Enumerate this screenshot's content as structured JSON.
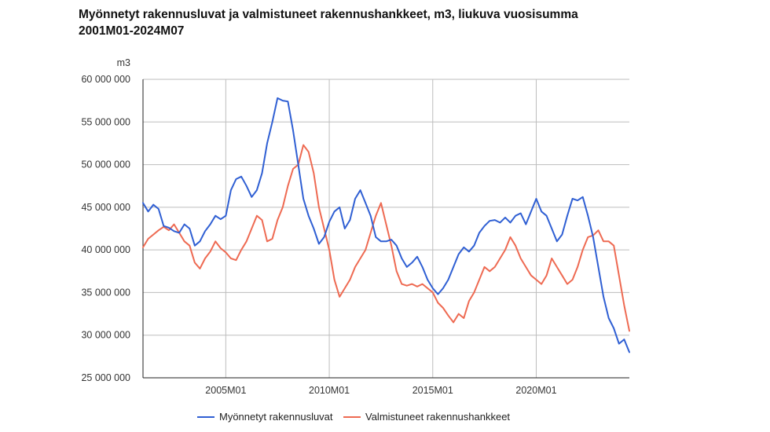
{
  "title_line1": "Myönnetyt rakennusluvat ja valmistuneet rakennushankkeet, m3, liukuva vuosisumma",
  "title_line2": "2001M01-2024M07",
  "colors": {
    "series_blue": "#2f5fd3",
    "series_red": "#ee6a52",
    "grid": "#bdbdbd",
    "axis_text": "#333333"
  },
  "chart_data": {
    "type": "line",
    "title": "Myönnetyt rakennusluvat ja valmistuneet rakennushankkeet, m3, liukuva vuosisumma",
    "subtitle": "2001M01-2024M07",
    "unit_label": "m3",
    "x_start": "2001M01",
    "x_end": "2024M07",
    "x_ticks": [
      "2005M01",
      "2010M01",
      "2015M01",
      "2020M01"
    ],
    "y_ticks": [
      "25 000 000",
      "30 000 000",
      "35 000 000",
      "40 000 000",
      "45 000 000",
      "50 000 000",
      "55 000 000",
      "60 000 000"
    ],
    "ylim": [
      25000000,
      60000000
    ],
    "grid": true,
    "legend_position": "bottom",
    "series": [
      {
        "name": "Myönnetyt rakennusluvat",
        "color": "#2f5fd3",
        "points": [
          [
            "2001M01",
            45500000
          ],
          [
            "2001M04",
            44500000
          ],
          [
            "2001M07",
            45300000
          ],
          [
            "2001M10",
            44800000
          ],
          [
            "2002M01",
            42800000
          ],
          [
            "2002M04",
            42600000
          ],
          [
            "2002M07",
            42200000
          ],
          [
            "2002M10",
            42000000
          ],
          [
            "2003M01",
            43000000
          ],
          [
            "2003M04",
            42500000
          ],
          [
            "2003M07",
            40500000
          ],
          [
            "2003M10",
            41000000
          ],
          [
            "2004M01",
            42200000
          ],
          [
            "2004M04",
            43000000
          ],
          [
            "2004M07",
            44000000
          ],
          [
            "2004M10",
            43600000
          ],
          [
            "2005M01",
            44000000
          ],
          [
            "2005M04",
            47000000
          ],
          [
            "2005M07",
            48300000
          ],
          [
            "2005M10",
            48600000
          ],
          [
            "2006M01",
            47500000
          ],
          [
            "2006M04",
            46200000
          ],
          [
            "2006M07",
            47000000
          ],
          [
            "2006M10",
            49000000
          ],
          [
            "2007M01",
            52500000
          ],
          [
            "2007M04",
            55000000
          ],
          [
            "2007M07",
            57800000
          ],
          [
            "2007M10",
            57500000
          ],
          [
            "2008M01",
            57400000
          ],
          [
            "2008M04",
            54000000
          ],
          [
            "2008M07",
            50000000
          ],
          [
            "2008M10",
            46000000
          ],
          [
            "2009M01",
            44000000
          ],
          [
            "2009M04",
            42500000
          ],
          [
            "2009M07",
            40700000
          ],
          [
            "2009M10",
            41500000
          ],
          [
            "2010M01",
            43300000
          ],
          [
            "2010M04",
            44500000
          ],
          [
            "2010M07",
            45000000
          ],
          [
            "2010M10",
            42500000
          ],
          [
            "2011M01",
            43500000
          ],
          [
            "2011M04",
            46000000
          ],
          [
            "2011M07",
            47000000
          ],
          [
            "2011M10",
            45500000
          ],
          [
            "2012M01",
            44000000
          ],
          [
            "2012M04",
            41500000
          ],
          [
            "2012M07",
            41000000
          ],
          [
            "2012M10",
            41000000
          ],
          [
            "2013M01",
            41200000
          ],
          [
            "2013M04",
            40500000
          ],
          [
            "2013M07",
            39000000
          ],
          [
            "2013M10",
            38000000
          ],
          [
            "2014M01",
            38500000
          ],
          [
            "2014M04",
            39200000
          ],
          [
            "2014M07",
            38000000
          ],
          [
            "2014M10",
            36500000
          ],
          [
            "2015M01",
            35500000
          ],
          [
            "2015M04",
            34800000
          ],
          [
            "2015M07",
            35500000
          ],
          [
            "2015M10",
            36500000
          ],
          [
            "2016M01",
            38000000
          ],
          [
            "2016M04",
            39500000
          ],
          [
            "2016M07",
            40300000
          ],
          [
            "2016M10",
            39800000
          ],
          [
            "2017M01",
            40500000
          ],
          [
            "2017M04",
            42000000
          ],
          [
            "2017M07",
            42800000
          ],
          [
            "2017M10",
            43400000
          ],
          [
            "2018M01",
            43500000
          ],
          [
            "2018M04",
            43200000
          ],
          [
            "2018M07",
            43800000
          ],
          [
            "2018M10",
            43200000
          ],
          [
            "2019M01",
            44000000
          ],
          [
            "2019M04",
            44300000
          ],
          [
            "2019M07",
            43000000
          ],
          [
            "2019M10",
            44500000
          ],
          [
            "2020M01",
            46000000
          ],
          [
            "2020M04",
            44500000
          ],
          [
            "2020M07",
            44000000
          ],
          [
            "2020M10",
            42500000
          ],
          [
            "2021M01",
            41000000
          ],
          [
            "2021M04",
            41800000
          ],
          [
            "2021M07",
            44000000
          ],
          [
            "2021M10",
            46000000
          ],
          [
            "2022M01",
            45800000
          ],
          [
            "2022M04",
            46200000
          ],
          [
            "2022M07",
            44000000
          ],
          [
            "2022M10",
            41500000
          ],
          [
            "2023M01",
            38000000
          ],
          [
            "2023M04",
            34500000
          ],
          [
            "2023M07",
            32000000
          ],
          [
            "2023M10",
            30800000
          ],
          [
            "2024M01",
            29000000
          ],
          [
            "2024M04",
            29500000
          ],
          [
            "2024M07",
            28000000
          ]
        ]
      },
      {
        "name": "Valmistuneet rakennushankkeet",
        "color": "#ee6a52",
        "points": [
          [
            "2001M01",
            40300000
          ],
          [
            "2001M04",
            41300000
          ],
          [
            "2001M07",
            41800000
          ],
          [
            "2001M10",
            42300000
          ],
          [
            "2002M01",
            42700000
          ],
          [
            "2002M04",
            42300000
          ],
          [
            "2002M07",
            43000000
          ],
          [
            "2002M10",
            42000000
          ],
          [
            "2003M01",
            41000000
          ],
          [
            "2003M04",
            40500000
          ],
          [
            "2003M07",
            38500000
          ],
          [
            "2003M10",
            37800000
          ],
          [
            "2004M01",
            39000000
          ],
          [
            "2004M04",
            39800000
          ],
          [
            "2004M07",
            41000000
          ],
          [
            "2004M10",
            40200000
          ],
          [
            "2005M01",
            39700000
          ],
          [
            "2005M04",
            39000000
          ],
          [
            "2005M07",
            38800000
          ],
          [
            "2005M10",
            40000000
          ],
          [
            "2006M01",
            41000000
          ],
          [
            "2006M04",
            42500000
          ],
          [
            "2006M07",
            44000000
          ],
          [
            "2006M10",
            43500000
          ],
          [
            "2007M01",
            41000000
          ],
          [
            "2007M04",
            41300000
          ],
          [
            "2007M07",
            43500000
          ],
          [
            "2007M10",
            45000000
          ],
          [
            "2008M01",
            47500000
          ],
          [
            "2008M04",
            49500000
          ],
          [
            "2008M07",
            50000000
          ],
          [
            "2008M10",
            52300000
          ],
          [
            "2009M01",
            51500000
          ],
          [
            "2009M04",
            49000000
          ],
          [
            "2009M07",
            45000000
          ],
          [
            "2009M10",
            42500000
          ],
          [
            "2010M01",
            40000000
          ],
          [
            "2010M04",
            36500000
          ],
          [
            "2010M07",
            34500000
          ],
          [
            "2010M10",
            35500000
          ],
          [
            "2011M01",
            36500000
          ],
          [
            "2011M04",
            38000000
          ],
          [
            "2011M07",
            39000000
          ],
          [
            "2011M10",
            40000000
          ],
          [
            "2012M01",
            42000000
          ],
          [
            "2012M04",
            44000000
          ],
          [
            "2012M07",
            45500000
          ],
          [
            "2012M10",
            43000000
          ],
          [
            "2013M01",
            40500000
          ],
          [
            "2013M04",
            37500000
          ],
          [
            "2013M07",
            36000000
          ],
          [
            "2013M10",
            35800000
          ],
          [
            "2014M01",
            36000000
          ],
          [
            "2014M04",
            35700000
          ],
          [
            "2014M07",
            36000000
          ],
          [
            "2014M10",
            35500000
          ],
          [
            "2015M01",
            35000000
          ],
          [
            "2015M04",
            33800000
          ],
          [
            "2015M07",
            33200000
          ],
          [
            "2015M10",
            32300000
          ],
          [
            "2016M01",
            31500000
          ],
          [
            "2016M04",
            32500000
          ],
          [
            "2016M07",
            32000000
          ],
          [
            "2016M10",
            34000000
          ],
          [
            "2017M01",
            35000000
          ],
          [
            "2017M04",
            36500000
          ],
          [
            "2017M07",
            38000000
          ],
          [
            "2017M10",
            37500000
          ],
          [
            "2018M01",
            38000000
          ],
          [
            "2018M04",
            39000000
          ],
          [
            "2018M07",
            40000000
          ],
          [
            "2018M10",
            41500000
          ],
          [
            "2019M01",
            40500000
          ],
          [
            "2019M04",
            39000000
          ],
          [
            "2019M07",
            38000000
          ],
          [
            "2019M10",
            37000000
          ],
          [
            "2020M01",
            36500000
          ],
          [
            "2020M04",
            36000000
          ],
          [
            "2020M07",
            37000000
          ],
          [
            "2020M10",
            39000000
          ],
          [
            "2021M01",
            38000000
          ],
          [
            "2021M04",
            37000000
          ],
          [
            "2021M07",
            36000000
          ],
          [
            "2021M10",
            36500000
          ],
          [
            "2022M01",
            38000000
          ],
          [
            "2022M04",
            40000000
          ],
          [
            "2022M07",
            41500000
          ],
          [
            "2022M10",
            41700000
          ],
          [
            "2023M01",
            42300000
          ],
          [
            "2023M04",
            41000000
          ],
          [
            "2023M07",
            41000000
          ],
          [
            "2023M10",
            40500000
          ],
          [
            "2024M01",
            37000000
          ],
          [
            "2024M04",
            33500000
          ],
          [
            "2024M07",
            30500000
          ]
        ]
      }
    ]
  }
}
